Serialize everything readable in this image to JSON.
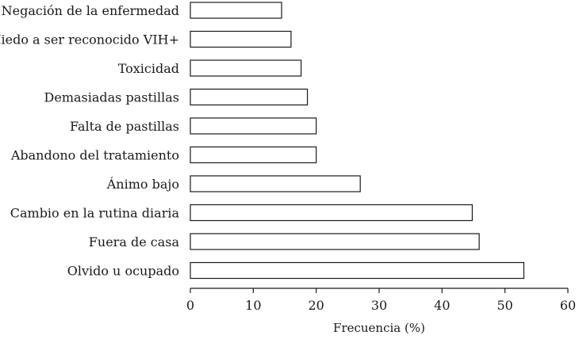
{
  "chart_data": {
    "type": "bar",
    "orientation": "horizontal",
    "categories": [
      "Negación de la enfermedad",
      "Miedo a ser reconocido VIH+",
      "Toxicidad",
      "Demasiadas pastillas",
      "Falta de pastillas",
      "Abandono del tratamiento",
      "Ánimo bajo",
      "Cambio en la rutina diaria",
      "Fuera de casa",
      "Olvido u ocupado"
    ],
    "values": [
      14.5,
      16,
      17.6,
      18.6,
      20,
      20,
      27,
      44.8,
      45.9,
      53
    ],
    "xlabel": "Frecuencia (%)",
    "ylabel": "",
    "title": "",
    "xlim": [
      0,
      60
    ],
    "xticks": [
      0,
      10,
      20,
      30,
      40,
      50,
      60
    ],
    "grid": false,
    "colors": {
      "bar_fill": "#ffffff",
      "bar_stroke": "#1a1a1a"
    }
  }
}
